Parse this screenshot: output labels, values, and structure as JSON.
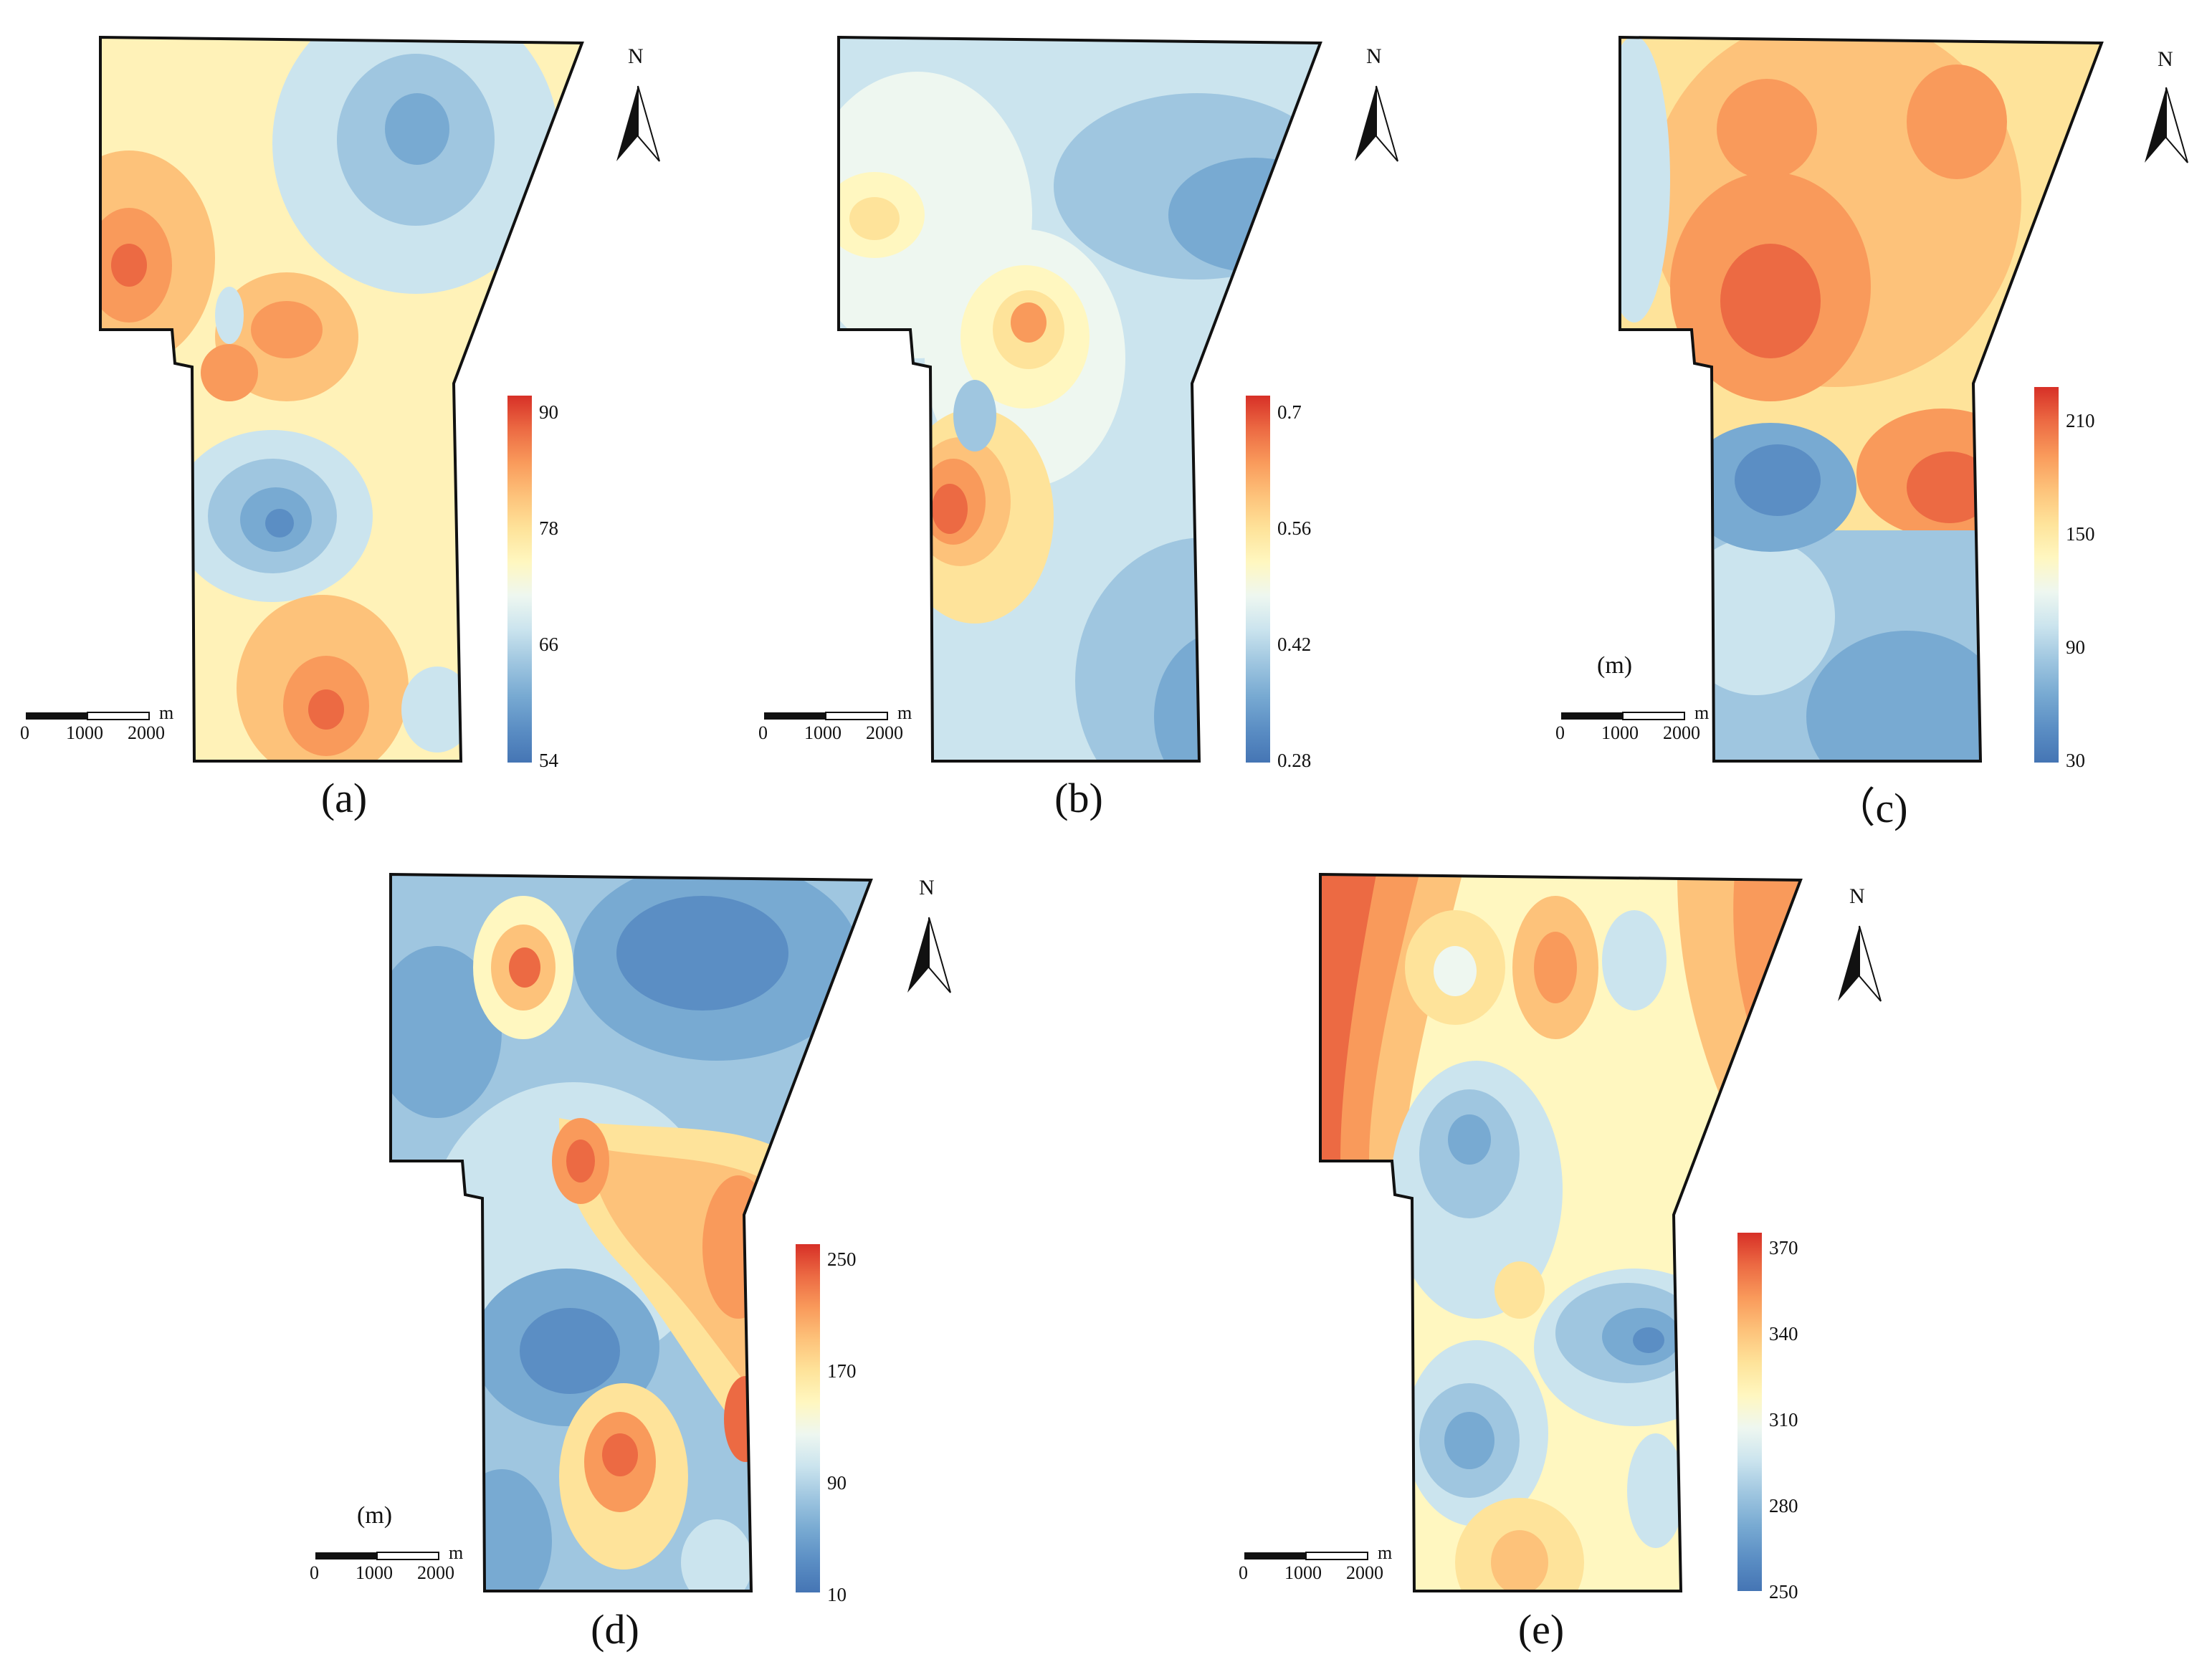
{
  "panels": [
    {
      "id": "a",
      "caption": "(a)",
      "colorbar_ticks": [
        "90",
        "78",
        "66",
        "54"
      ],
      "unit_label": "",
      "north_label": "N",
      "scale": {
        "labels": [
          "0",
          "1000",
          "2000"
        ],
        "unit": "m"
      }
    },
    {
      "id": "b",
      "caption": "(b)",
      "colorbar_ticks": [
        "0.7",
        "0.56",
        "0.42",
        "0.28"
      ],
      "unit_label": "",
      "north_label": "N",
      "scale": {
        "labels": [
          "0",
          "1000",
          "2000"
        ],
        "unit": "m"
      }
    },
    {
      "id": "c",
      "caption": "（c)",
      "colorbar_ticks": [
        "210",
        "150",
        "90",
        "30"
      ],
      "unit_label": "(m)",
      "north_label": "N",
      "scale": {
        "labels": [
          "0",
          "1000",
          "2000"
        ],
        "unit": "m"
      }
    },
    {
      "id": "d",
      "caption": "(d)",
      "colorbar_ticks": [
        "250",
        "170",
        "90",
        "10"
      ],
      "unit_label": "(m)",
      "north_label": "N",
      "scale": {
        "labels": [
          "0",
          "1000",
          "2000"
        ],
        "unit": "m"
      }
    },
    {
      "id": "e",
      "caption": "(e)",
      "colorbar_ticks": [
        "370",
        "340",
        "310",
        "280",
        "250"
      ],
      "unit_label": "",
      "north_label": "N",
      "scale": {
        "labels": [
          "0",
          "1000",
          "2000"
        ],
        "unit": "m"
      }
    }
  ],
  "colors": {
    "ramp": [
      "#4575b4",
      "#5b8ec4",
      "#78aad2",
      "#9fc6e0",
      "#cbe4ee",
      "#eef7f0",
      "#fff7c0",
      "#fee39a",
      "#fdc27a",
      "#f99a5b",
      "#ec6a43",
      "#d73027"
    ],
    "outline": "#111111"
  }
}
